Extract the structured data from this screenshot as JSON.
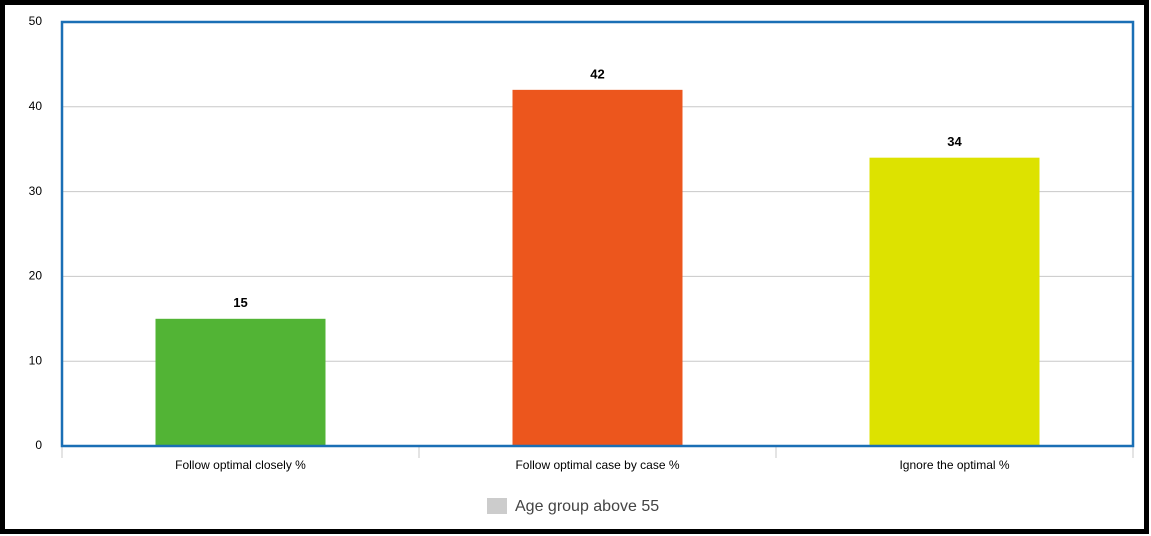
{
  "chart_data": {
    "type": "bar",
    "categories": [
      "Follow optimal closely %",
      "Follow optimal case by case %",
      "Ignore the optimal %"
    ],
    "series": [
      {
        "name": "Age group above 55",
        "color": "#cccccc",
        "values": [
          15,
          42,
          34
        ]
      }
    ],
    "colors": [
      "#52b435",
      "#ec561d",
      "#dde200"
    ],
    "ylim": [
      0,
      50
    ],
    "yticks": [
      0,
      10,
      20,
      30,
      40,
      50
    ],
    "grid": true,
    "legend": "bottom"
  }
}
